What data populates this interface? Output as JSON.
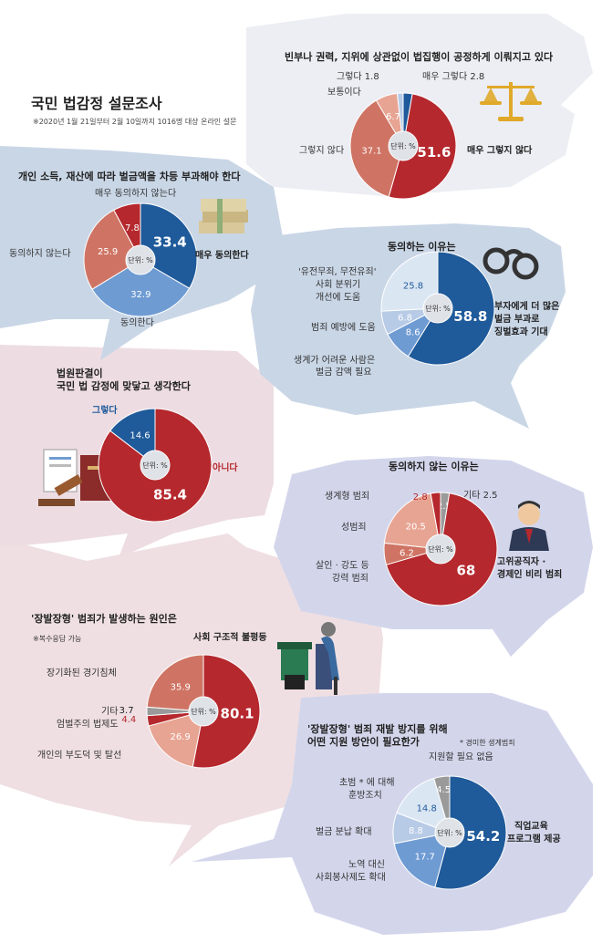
{
  "header": {
    "title": "국민 법감정 설문조사",
    "survey_note": "※2020년 1월 21일부터 2월 10일까지 1016명 대상 온라인 설문"
  },
  "colors": {
    "dark_blue": "#1f5a9a",
    "mid_blue": "#6f9bd3",
    "pale_blue": "#dbe6f3",
    "light_blue": "#b7cbe6",
    "dark_red": "#b5282d",
    "mid_red": "#cf7464",
    "pink": "#e8a493",
    "gray": "#9a9a9a",
    "bubble_blue": "#c9d6e6",
    "bubble_lavender": "#d3d6eb",
    "bubble_pink": "#eddde2",
    "bubble_gray": "#eceef3"
  },
  "icons": [
    "scales-icon",
    "money-stack-icon",
    "handcuffs-icon",
    "gavel-books-icon",
    "businessman-icon",
    "trash-can-elderly-icon"
  ],
  "center_label": "단위: %",
  "chart_data": [
    {
      "id": "equal-enforcement",
      "type": "pie",
      "title": "빈부나 권력, 지위에 상관없이 법집행이 공정하게 이뤄지고 있다",
      "categories": [
        "매우 그렇다",
        "매우 그렇지 않다",
        "그렇지 않다",
        "보통이다",
        "그렇다"
      ],
      "values": [
        2.8,
        51.6,
        37.1,
        6.7,
        1.8
      ],
      "unit": "%"
    },
    {
      "id": "fines-by-income",
      "type": "pie",
      "title": "개인 소득, 재산에 따라 벌금액을 차등 부과해야 한다",
      "categories": [
        "매우 동의한다",
        "동의한다",
        "동의하지 않는다",
        "매우 동의하지 않는다"
      ],
      "values": [
        33.4,
        32.9,
        25.9,
        7.8
      ],
      "unit": "%"
    },
    {
      "id": "agree-reasons",
      "type": "pie",
      "title": "동의하는 이유는",
      "categories": [
        "부자에게 더 많은 벌금 부과로 징벌효과 기대",
        "생계가 어려운 사람은 벌금 감액 필요",
        "범죄 예방에 도움",
        "'유전무죄, 무전유죄' 사회 분위기 개선에 도움"
      ],
      "values": [
        58.8,
        8.6,
        6.8,
        25.8
      ],
      "unit": "%"
    },
    {
      "id": "court-rulings",
      "type": "pie",
      "title": "법원판결이 국민 법 감정에 맞닿고 생각한다",
      "categories": [
        "아니다",
        "그렇다"
      ],
      "values": [
        85.4,
        14.6
      ],
      "unit": "%"
    },
    {
      "id": "disagree-reasons",
      "type": "pie",
      "title": "동의하지 않는 이유는",
      "categories": [
        "기타",
        "고위공직자 · 경제인 비리 범죄",
        "살인 · 강도 등 강력 범죄",
        "성범죄",
        "생계형 범죄"
      ],
      "values": [
        2.5,
        68.0,
        6.2,
        20.5,
        2.8
      ],
      "unit": "%"
    },
    {
      "id": "jean-valjean-causes",
      "type": "pie",
      "title": "'장발장형' 범죄가 발생하는 원인은",
      "note": "※복수응답 가능",
      "categories": [
        "사회 구조적 불평등",
        "개인의 부도덕 및 탈선",
        "엄벌주의 법제도",
        "기타",
        "장기화된 경기침체"
      ],
      "values": [
        80.1,
        26.9,
        4.4,
        3.7,
        35.9
      ],
      "unit": "%"
    },
    {
      "id": "prevention-support",
      "type": "pie",
      "title": "'장발장형' 범죄 재발 방지를 위해 어떤 지원 방안이 필요한가",
      "note": "* 경미한 생계범죄",
      "categories": [
        "직업교육 프로그램 제공",
        "노역 대신 사회봉사제도 확대",
        "벌금 분납 확대",
        "초범 * 에 대해 훈방조치",
        "지원할 필요 없음"
      ],
      "values": [
        54.2,
        17.7,
        8.8,
        14.8,
        4.5
      ],
      "unit": "%"
    }
  ],
  "labels": {
    "c1_title": "빈부나 권력, 지위에 상관없이 법집행이 공정하게 이뤄지고 있다",
    "c1_geureota": "그렇다 1.8",
    "c1_bot": "보통이다",
    "c1_mae_geureota": "매우 그렇다 2.8",
    "c1_not": "그렇지 않다",
    "c1_very_not": "매우 그렇지 않다",
    "c2_title": "개인 소득, 재산에 따라 벌금액을 차등 부과해야 한다",
    "c2_very_disagree": "매우 동의하지 않는다",
    "c2_disagree": "동의하지 않는다",
    "c2_very_agree": "매우 동의한다",
    "c2_agree": "동의한다",
    "c3_title": "동의하는 이유는",
    "c3_l1": "'유전무죄, 무전유죄'",
    "c3_l2": "사회 분위기",
    "c3_l3": "개선에 도움",
    "c3_prevent": "범죄 예방에 도움",
    "c3_low1": "생계가 어려운 사람은",
    "c3_low2": "벌금 감액 필요",
    "c3_rich1": "부자에게 더 많은",
    "c3_rich2": "벌금 부과로",
    "c3_rich3": "징벌효과 기대",
    "c4_title1": "법원판결이",
    "c4_title2": "국민 법 감정에 맞닿고 생각한다",
    "c4_yes": "그렇다",
    "c4_no": "아니다",
    "c5_title": "동의하지 않는 이유는",
    "c5_livelihood": "생계형 범죄",
    "c5_etc": "기타 2.5",
    "c5_sex": "성범죄",
    "c5_violent1": "살인 · 강도 등",
    "c5_violent2": "강력 범죄",
    "c5_elite1": "고위공직자 ·",
    "c5_elite2": "경제인 비리 범죄",
    "c6_title": "'장발장형' 범죄가 발생하는 원인은",
    "c6_note": "※복수응답 가능",
    "c6_structural": "사회 구조적 불평등",
    "c6_recession": "장기화된 경기침체",
    "c6_etc": "기타",
    "c6_punitive": "엄벌주의 법제도",
    "c6_personal": "개인의 부도덕 및 탈선",
    "c7_title1": "'장발장형' 범죄 재발 방지를 위해",
    "c7_title2": "어떤 지원 방안이 필요한가",
    "c7_note": "* 경미한 생계범죄",
    "c7_none": "지원할 필요 없음",
    "c7_first1": "초범 * 에 대해",
    "c7_first2": "훈방조치",
    "c7_install": "벌금 분납 확대",
    "c7_service1": "노역 대신",
    "c7_service2": "사회봉사제도 확대",
    "c7_job1": "직업교육",
    "c7_job2": "프로그램 제공"
  }
}
